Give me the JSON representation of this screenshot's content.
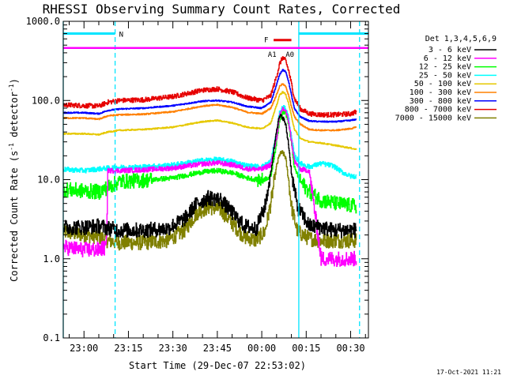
{
  "chart_data": {
    "type": "line",
    "title": "RHESSI Observing Summary Count Rates, Corrected",
    "xlabel": "Start Time (29-Dec-07 22:53:02)",
    "ylabel_main": "Corrected Count Rate (s",
    "ylabel_sup1": "-1",
    "ylabel_mid": " detector",
    "ylabel_sup2": "-1",
    "ylabel_end": ")",
    "yscale": "log",
    "ylim": [
      0.1,
      1000.0
    ],
    "xlim_minutes": [
      -7,
      96
    ],
    "x_ticks": [
      {
        "label": "23:00",
        "m": 0
      },
      {
        "label": "23:15",
        "m": 15
      },
      {
        "label": "23:30",
        "m": 30
      },
      {
        "label": "23:45",
        "m": 45
      },
      {
        "label": "00:00",
        "m": 60
      },
      {
        "label": "00:15",
        "m": 75
      },
      {
        "label": "00:30",
        "m": 90
      }
    ],
    "y_ticks": [
      {
        "label": "1000.0",
        "v": 1000
      },
      {
        "label": "100.0",
        "v": 100
      },
      {
        "label": "10.0",
        "v": 10
      },
      {
        "label": "1.0",
        "v": 1
      },
      {
        "label": "0.1",
        "v": 0.1
      }
    ],
    "legend_title": "Det 1,3,4,5,6,9",
    "legend_placement": "right",
    "series": [
      {
        "name": "3 - 6 keV",
        "color": "#000000",
        "x": [
          -7,
          0,
          5,
          9,
          12,
          20,
          28,
          34,
          38,
          42,
          46,
          50,
          54,
          58,
          61,
          63,
          65,
          66,
          67,
          68,
          69,
          70,
          72,
          76,
          80,
          84,
          88,
          92
        ],
        "y": [
          2.5,
          2.5,
          2.6,
          2.4,
          2.3,
          2.3,
          2.4,
          3.2,
          5.0,
          5.9,
          5.6,
          3.8,
          2.6,
          2.4,
          4.5,
          12,
          45,
          63,
          62,
          50,
          28,
          12,
          4.5,
          2.6,
          2.5,
          2.3,
          2.3,
          2.3
        ]
      },
      {
        "name": "6 - 12 keV",
        "color": "#ff00ff",
        "x": [
          -7,
          0,
          5,
          7.5,
          8,
          12,
          20,
          30,
          40,
          45,
          50,
          55,
          60,
          63,
          65,
          66,
          67,
          68,
          69,
          70,
          71,
          73,
          76,
          80,
          85,
          90,
          92
        ],
        "y": [
          1.4,
          1.3,
          1.3,
          1.4,
          13.0,
          13.0,
          13.3,
          14.0,
          15.8,
          16.3,
          15.4,
          13.7,
          13.5,
          15.5,
          35,
          62,
          80,
          74,
          55,
          30,
          17,
          13.5,
          13.0,
          1.0,
          1.0,
          1.0,
          1.0
        ]
      },
      {
        "name": "12 - 25 keV",
        "color": "#00ff00",
        "x": [
          -7,
          0,
          5,
          8,
          12,
          20,
          30,
          40,
          45,
          50,
          55,
          60,
          63,
          65,
          66,
          67,
          68,
          69,
          70,
          71,
          73,
          76,
          80,
          85,
          90,
          92
        ],
        "y": [
          7.5,
          7.2,
          7.0,
          8.0,
          9.5,
          9.8,
          10.5,
          12.5,
          13.0,
          12.2,
          10.5,
          9.8,
          11,
          30,
          58,
          72,
          70,
          52,
          28,
          14,
          9.5,
          7.0,
          5.5,
          5.0,
          4.7,
          4.6
        ]
      },
      {
        "name": "25 - 50 keV",
        "color": "#00ffff",
        "x": [
          -7,
          0,
          8,
          12,
          20,
          30,
          40,
          45,
          50,
          55,
          60,
          63,
          65,
          66,
          67,
          68,
          69,
          70,
          71,
          73,
          76,
          80,
          84,
          87,
          90,
          92
        ],
        "y": [
          13.5,
          13.0,
          14.0,
          14.3,
          14.5,
          15.3,
          17.5,
          18.0,
          17.0,
          15.0,
          14.5,
          17,
          40,
          70,
          82,
          80,
          60,
          33,
          20,
          16,
          14.5,
          16.0,
          15.0,
          12.5,
          11.0,
          11.0
        ]
      },
      {
        "name": "50 - 100 keV",
        "color": "#e6c800",
        "x": [
          -7,
          0,
          5,
          8,
          12,
          20,
          30,
          40,
          45,
          50,
          55,
          60,
          63,
          65,
          66,
          67,
          68,
          69,
          70,
          71,
          73,
          76,
          80,
          85,
          90,
          92
        ],
        "y": [
          38,
          38,
          37,
          40,
          42,
          43,
          46,
          54,
          56,
          52,
          46,
          44,
          52,
          88,
          118,
          128,
          120,
          92,
          62,
          43,
          33,
          30,
          29,
          27,
          25,
          24
        ]
      },
      {
        "name": "100 - 300 keV",
        "color": "#ff8000",
        "x": [
          -7,
          0,
          5,
          8,
          12,
          20,
          30,
          40,
          45,
          50,
          55,
          60,
          63,
          65,
          66,
          67,
          68,
          69,
          70,
          71,
          73,
          76,
          80,
          85,
          90,
          92
        ],
        "y": [
          60,
          60,
          58,
          64,
          66,
          67,
          72,
          85,
          88,
          82,
          71,
          68,
          80,
          120,
          152,
          162,
          150,
          118,
          82,
          62,
          50,
          43,
          42,
          42,
          44,
          46
        ]
      },
      {
        "name": "300 - 800 keV",
        "color": "#0000ff",
        "x": [
          -7,
          0,
          5,
          8,
          12,
          20,
          30,
          40,
          45,
          50,
          55,
          60,
          63,
          65,
          66,
          67,
          68,
          69,
          70,
          71,
          73,
          76,
          80,
          85,
          90,
          92
        ],
        "y": [
          70,
          70,
          68,
          75,
          78,
          80,
          86,
          98,
          100,
          95,
          84,
          80,
          95,
          160,
          215,
          245,
          230,
          175,
          115,
          78,
          62,
          55,
          54,
          54,
          56,
          58
        ]
      },
      {
        "name": "800 - 7000 keV",
        "color": "#e60000",
        "x": [
          -7,
          0,
          5,
          8,
          12,
          20,
          30,
          40,
          45,
          50,
          55,
          60,
          63,
          65,
          66,
          67,
          68,
          69,
          70,
          71,
          73,
          76,
          80,
          85,
          90,
          92
        ],
        "y": [
          88,
          86,
          85,
          95,
          100,
          102,
          112,
          135,
          140,
          128,
          108,
          100,
          115,
          205,
          290,
          350,
          320,
          240,
          160,
          105,
          78,
          68,
          66,
          66,
          68,
          72
        ]
      },
      {
        "name": "7000 - 15000 keV",
        "color": "#808000",
        "x": [
          -7,
          0,
          5,
          8,
          12,
          20,
          28,
          34,
          38,
          42,
          46,
          50,
          54,
          58,
          61,
          63,
          65,
          66,
          67,
          68,
          69,
          70,
          72,
          76,
          80,
          84,
          88,
          92
        ],
        "y": [
          2.2,
          2.0,
          1.9,
          1.7,
          1.6,
          1.6,
          1.7,
          2.3,
          3.8,
          4.5,
          4.2,
          2.8,
          1.9,
          1.7,
          2.2,
          5,
          15,
          21,
          22,
          19,
          10,
          4.5,
          2.2,
          1.8,
          1.7,
          1.7,
          1.7,
          1.7
        ]
      }
    ],
    "attenuator": {
      "color": "#ff00ff",
      "level": 460,
      "labels": [
        {
          "text": "A1",
          "m": 63.5
        },
        {
          "text": "A0",
          "m": 69.5
        }
      ]
    },
    "night": {
      "color": "#00e5ff",
      "level": 700,
      "label": "N",
      "segments": [
        [
          -7,
          10.5
        ],
        [
          72.5,
          96
        ]
      ],
      "vlines": [
        -7,
        10.5,
        72.5,
        93
      ]
    },
    "flare": {
      "color": "#e60000",
      "level": 580,
      "label": "F",
      "start_m": 64,
      "end_m": 70,
      "label_m": 61.5
    },
    "timestamp": "17-Oct-2021 11:21"
  }
}
